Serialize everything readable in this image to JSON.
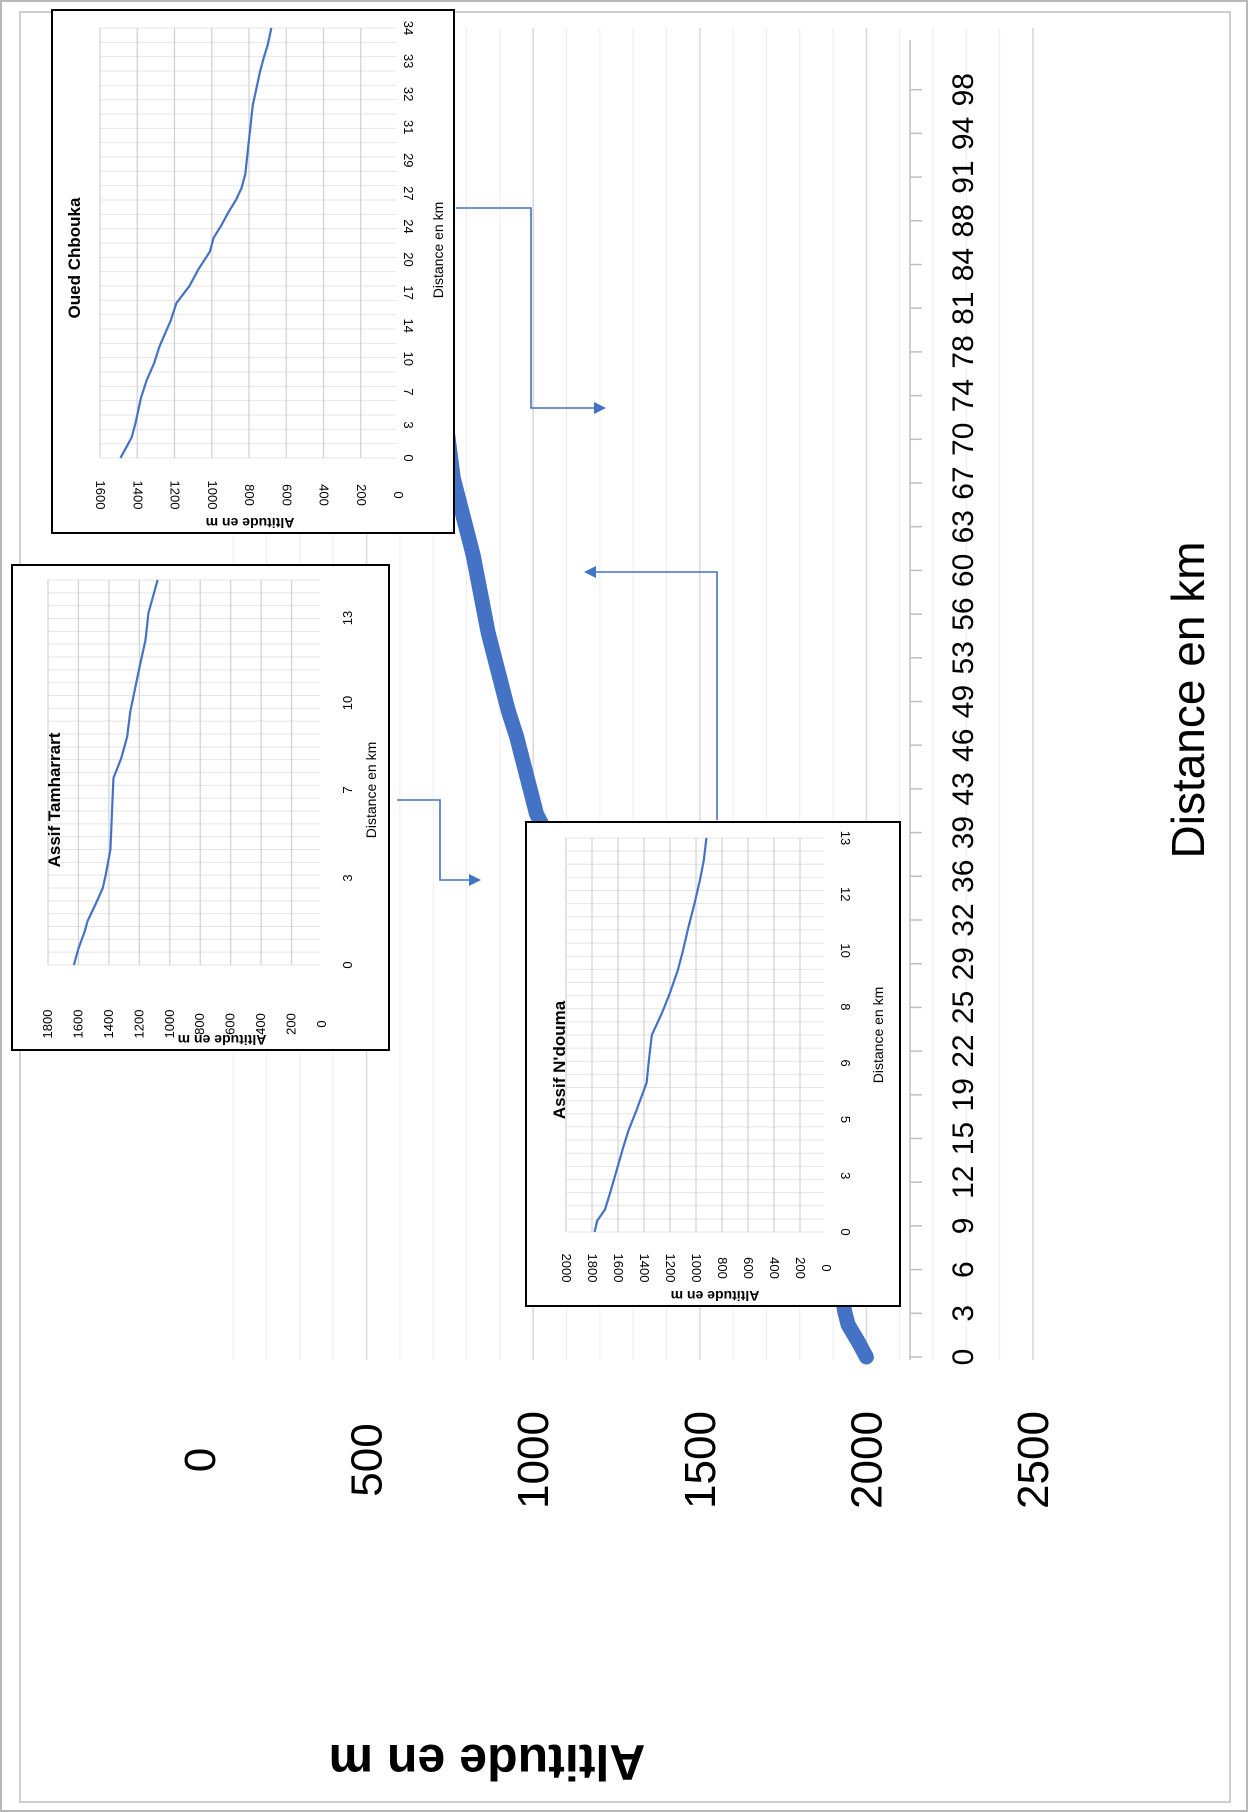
{
  "chart_data": [
    {
      "type": "line",
      "ylabel": "Altitude en m",
      "xlabel": "Distance en km",
      "yticks": [
        0,
        500,
        1000,
        1500,
        2000,
        2500
      ],
      "ylim": [
        0,
        2500
      ],
      "xticks": [
        "0",
        "3",
        "6",
        "9",
        "12",
        "15",
        "19",
        "22",
        "25",
        "29",
        "32",
        "36",
        "39",
        "43",
        "46",
        "49",
        "53",
        "56",
        "60",
        "63",
        "67",
        "70",
        "74",
        "78",
        "81",
        "84",
        "88",
        "91",
        "94",
        "98"
      ],
      "xlim": [
        0,
        100
      ],
      "grid": true,
      "series_color": "#4472c4",
      "series": [
        {
          "values": [
            [
              0,
              2000
            ],
            [
              1.2,
              1975
            ],
            [
              2.5,
              1945
            ],
            [
              3.5,
              1935
            ],
            [
              5,
              1925
            ],
            [
              7,
              1915
            ],
            [
              8.2,
              1912
            ],
            [
              8.8,
              1880
            ],
            [
              9.5,
              1840
            ],
            [
              10.5,
              1790
            ],
            [
              11.3,
              1765
            ],
            [
              12.2,
              1720
            ],
            [
              13,
              1690
            ],
            [
              14,
              1670
            ],
            [
              15,
              1630
            ],
            [
              16,
              1600
            ],
            [
              17.5,
              1575
            ],
            [
              18.5,
              1540
            ],
            [
              19.5,
              1510
            ],
            [
              21,
              1470
            ],
            [
              22.5,
              1420
            ],
            [
              24,
              1380
            ],
            [
              25.5,
              1340
            ],
            [
              27,
              1300
            ],
            [
              28.5,
              1270
            ],
            [
              29.5,
              1230
            ],
            [
              31,
              1195
            ],
            [
              32.5,
              1170
            ],
            [
              34,
              1140
            ],
            [
              35.5,
              1120
            ],
            [
              37,
              1090
            ],
            [
              39,
              1060
            ],
            [
              40.5,
              1040
            ],
            [
              42,
              1010
            ],
            [
              44,
              990
            ],
            [
              46,
              970
            ],
            [
              48,
              950
            ],
            [
              50,
              925
            ],
            [
              52,
              905
            ],
            [
              54,
              885
            ],
            [
              56,
              865
            ],
            [
              58,
              850
            ],
            [
              60,
              835
            ],
            [
              62,
              820
            ],
            [
              64,
              800
            ],
            [
              66,
              780
            ],
            [
              68,
              760
            ],
            [
              70,
              750
            ],
            [
              72,
              740
            ],
            [
              74,
              735
            ],
            [
              76,
              735
            ],
            [
              78,
              730
            ],
            [
              80,
              730
            ],
            [
              82,
              728
            ],
            [
              84,
              725
            ],
            [
              86,
              722
            ],
            [
              88,
              718
            ],
            [
              90,
              700
            ],
            [
              92,
              680
            ],
            [
              94,
              655
            ],
            [
              96,
              635
            ],
            [
              97,
              620
            ],
            [
              98,
              610
            ]
          ]
        }
      ]
    },
    {
      "type": "line",
      "title": "Assif Tamharrart",
      "ylabel": "Altitude en m",
      "xlabel": "Distance en km",
      "yticks": [
        0,
        200,
        400,
        600,
        800,
        1000,
        1200,
        1400,
        1600,
        1800
      ],
      "ylim": [
        0,
        1800
      ],
      "xticks": [
        "0",
        "3",
        "7",
        "10",
        "13"
      ],
      "xmax": 14,
      "grid": true,
      "series": [
        {
          "values": [
            [
              0,
              1630
            ],
            [
              0.6,
              1600
            ],
            [
              1.2,
              1560
            ],
            [
              1.6,
              1540
            ],
            [
              2.3,
              1480
            ],
            [
              2.8,
              1440
            ],
            [
              3.3,
              1420
            ],
            [
              4.2,
              1390
            ],
            [
              5.5,
              1380
            ],
            [
              6.8,
              1370
            ],
            [
              7.5,
              1320
            ],
            [
              8.3,
              1280
            ],
            [
              9.2,
              1260
            ],
            [
              10,
              1230
            ],
            [
              10.8,
              1200
            ],
            [
              11.8,
              1160
            ],
            [
              12.8,
              1140
            ],
            [
              13.6,
              1100
            ],
            [
              14,
              1080
            ]
          ]
        }
      ]
    },
    {
      "type": "line",
      "title": "Oued Chbouka",
      "ylabel": "Altitude en m",
      "xlabel": "Distance en km",
      "yticks": [
        0,
        200,
        400,
        600,
        800,
        1000,
        1200,
        1400,
        1600
      ],
      "ylim": [
        0,
        1600
      ],
      "xticks": [
        "0",
        "3",
        "7",
        "10",
        "14",
        "17",
        "20",
        "24",
        "27",
        "29",
        "31",
        "32",
        "33",
        "34"
      ],
      "grid": true,
      "series": [
        {
          "values": [
            [
              0,
              1490
            ],
            [
              0.6,
              1460
            ],
            [
              1.2,
              1430
            ],
            [
              2,
              1410
            ],
            [
              3.5,
              1380
            ],
            [
              4.5,
              1350
            ],
            [
              5.5,
              1310
            ],
            [
              6.5,
              1280
            ],
            [
              8,
              1220
            ],
            [
              9,
              1190
            ],
            [
              10,
              1120
            ],
            [
              11,
              1070
            ],
            [
              12,
              1010
            ],
            [
              12.8,
              990
            ],
            [
              13.5,
              950
            ],
            [
              14.3,
              910
            ],
            [
              15,
              870
            ],
            [
              15.7,
              840
            ],
            [
              16.5,
              820
            ],
            [
              17.5,
              810
            ],
            [
              18.5,
              800
            ],
            [
              19.5,
              790
            ],
            [
              20.5,
              780
            ],
            [
              21.5,
              760
            ],
            [
              22.5,
              740
            ],
            [
              23.3,
              720
            ],
            [
              24,
              700
            ],
            [
              25,
              680
            ]
          ]
        }
      ]
    },
    {
      "type": "line",
      "title": "Assif N'douma",
      "ylabel": "Altitude en m",
      "xlabel": "Distance en km",
      "yticks": [
        0,
        200,
        400,
        600,
        800,
        1000,
        1200,
        1400,
        1600,
        1800,
        2000
      ],
      "ylim": [
        0,
        2000
      ],
      "xticks": [
        "0",
        "3",
        "5",
        "6",
        "8",
        "10",
        "12",
        "13"
      ],
      "grid": true,
      "series": [
        {
          "values": [
            [
              0,
              1780
            ],
            [
              0.4,
              1760
            ],
            [
              0.8,
              1700
            ],
            [
              1.4,
              1660
            ],
            [
              2.2,
              1610
            ],
            [
              3,
              1560
            ],
            [
              3.6,
              1520
            ],
            [
              4.3,
              1460
            ],
            [
              4.8,
              1420
            ],
            [
              5.3,
              1380
            ],
            [
              6.2,
              1360
            ],
            [
              7,
              1340
            ],
            [
              7.8,
              1260
            ],
            [
              8.5,
              1200
            ],
            [
              9.3,
              1140
            ],
            [
              10,
              1100
            ],
            [
              10.8,
              1060
            ],
            [
              11.7,
              1010
            ],
            [
              12.5,
              970
            ],
            [
              13.2,
              940
            ],
            [
              14,
              920
            ]
          ]
        }
      ]
    }
  ]
}
